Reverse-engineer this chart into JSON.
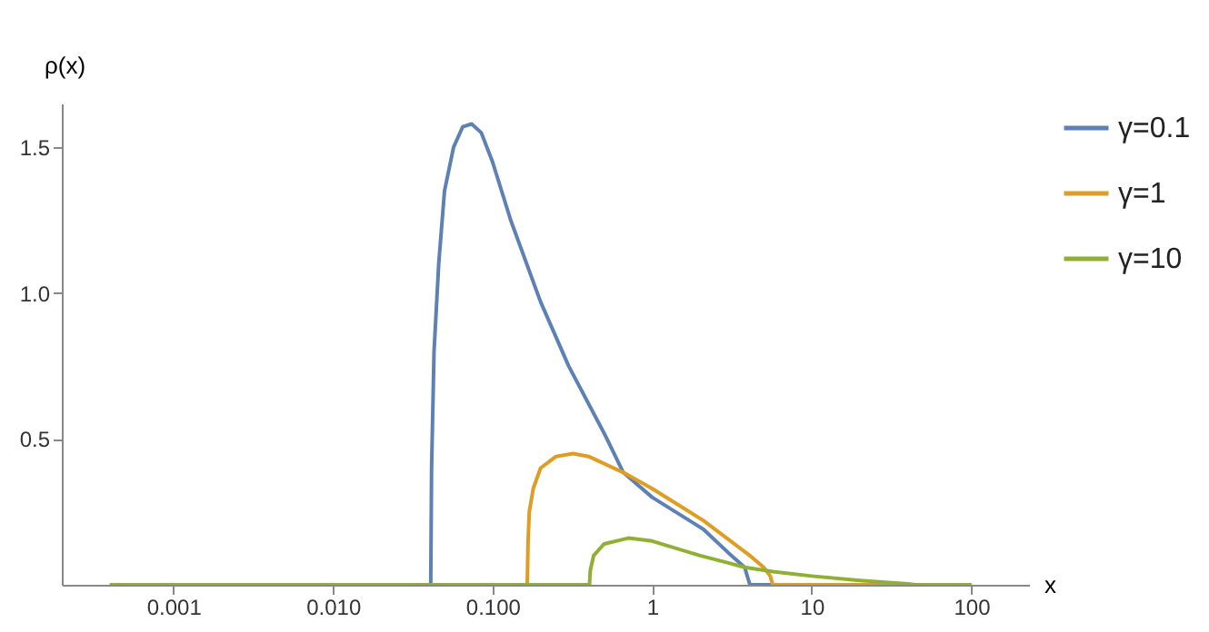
{
  "chart_data": {
    "type": "line",
    "xlabel": "x",
    "ylabel": "ρ(x)",
    "log": "x",
    "grid": false,
    "legend": "right",
    "line_style": "solid",
    "marker": "none",
    "xlim": [
      0.0002,
      230
    ],
    "ylim": [
      0,
      1.65
    ],
    "xticks": [
      {
        "value": 0.001,
        "label": "0.001"
      },
      {
        "value": 0.01,
        "label": "0.010"
      },
      {
        "value": 0.1,
        "label": "0.100"
      },
      1,
      10,
      100
    ],
    "yticks": [
      {
        "value": 0.5,
        "label": "0.5"
      },
      {
        "value": 1,
        "label": "1.0"
      },
      {
        "value": 1.5,
        "label": "1.5"
      }
    ],
    "series": [
      {
        "name": "γ=0.1",
        "color": "#5e81b5",
        "x": [
          0.0004,
          0.041,
          0.0415,
          0.043,
          0.046,
          0.05,
          0.057,
          0.065,
          0.074,
          0.085,
          0.1,
          0.13,
          0.2,
          0.3,
          0.5,
          0.66,
          1,
          2.1,
          3,
          3.8,
          4.1,
          100
        ],
        "values": [
          0,
          0,
          0.4,
          0.8,
          1.1,
          1.35,
          1.5,
          1.57,
          1.58,
          1.55,
          1.45,
          1.25,
          0.97,
          0.75,
          0.52,
          0.385,
          0.3,
          0.19,
          0.11,
          0.06,
          0,
          0
        ]
      },
      {
        "name": "γ=1",
        "color": "#e19c24",
        "x": [
          0.0004,
          0.165,
          0.167,
          0.17,
          0.18,
          0.2,
          0.25,
          0.32,
          0.4,
          0.66,
          1,
          2.1,
          4.1,
          5,
          5.5,
          5.7,
          100
        ],
        "values": [
          0,
          0,
          0.15,
          0.25,
          0.33,
          0.4,
          0.44,
          0.45,
          0.44,
          0.385,
          0.33,
          0.22,
          0.1,
          0.06,
          0.03,
          0,
          0
        ]
      },
      {
        "name": "γ=10",
        "color": "#8fb032",
        "x": [
          0.0004,
          0.405,
          0.41,
          0.43,
          0.5,
          0.71,
          1,
          2,
          3,
          3.8,
          5.7,
          10,
          20,
          40,
          45,
          100
        ],
        "values": [
          0,
          0,
          0.05,
          0.1,
          0.14,
          0.16,
          0.15,
          0.1,
          0.075,
          0.06,
          0.045,
          0.03,
          0.015,
          0.003,
          0,
          0
        ]
      }
    ]
  }
}
